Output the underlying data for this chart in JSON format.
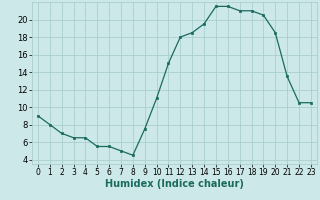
{
  "x": [
    0,
    1,
    2,
    3,
    4,
    5,
    6,
    7,
    8,
    9,
    10,
    11,
    12,
    13,
    14,
    15,
    16,
    17,
    18,
    19,
    20,
    21,
    22,
    23
  ],
  "y": [
    9,
    8,
    7,
    6.5,
    6.5,
    5.5,
    5.5,
    5,
    4.5,
    7.5,
    11,
    15,
    18,
    18.5,
    19.5,
    21.5,
    21.5,
    21,
    21,
    20.5,
    18.5,
    13.5,
    10.5,
    10.5
  ],
  "xlim": [
    -0.5,
    23.5
  ],
  "ylim": [
    3.5,
    22
  ],
  "yticks": [
    4,
    6,
    8,
    10,
    12,
    14,
    16,
    18,
    20
  ],
  "xticks": [
    0,
    1,
    2,
    3,
    4,
    5,
    6,
    7,
    8,
    9,
    10,
    11,
    12,
    13,
    14,
    15,
    16,
    17,
    18,
    19,
    20,
    21,
    22,
    23
  ],
  "xlabel": "Humidex (Indice chaleur)",
  "line_color": "#1a6b5e",
  "marker": "s",
  "marker_size": 2,
  "bg_color": "#cce8e8",
  "grid_color": "#aacfcf",
  "xlabel_color": "#1a6b5e",
  "xlabel_fontsize": 7,
  "tick_fontsize": 5.5,
  "ytick_fontsize": 6
}
